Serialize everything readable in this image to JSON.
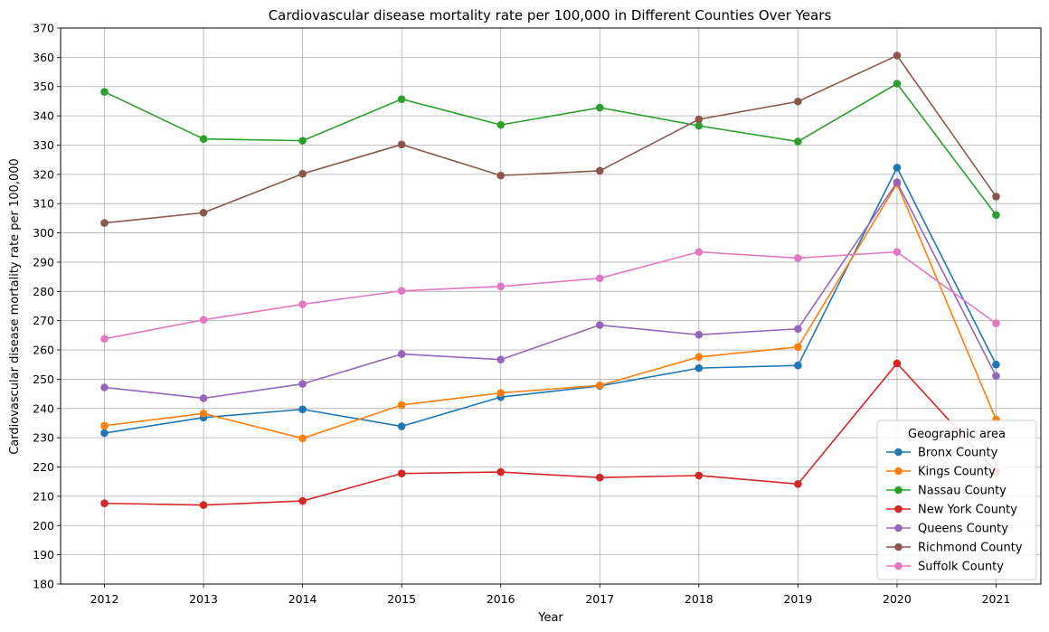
{
  "chart_data": {
    "type": "line",
    "title": "Cardiovascular disease mortality rate per 100,000 in Different Counties Over Years",
    "xlabel": "Year",
    "ylabel": "Cardiovascular disease mortality rate per 100,000",
    "x": [
      2012,
      2013,
      2014,
      2015,
      2016,
      2017,
      2018,
      2019,
      2020,
      2021
    ],
    "ylim": [
      180,
      370
    ],
    "yticks": [
      180,
      190,
      200,
      210,
      220,
      230,
      240,
      250,
      260,
      270,
      280,
      290,
      300,
      310,
      320,
      330,
      340,
      350,
      360,
      370
    ],
    "grid": true,
    "markers": true,
    "legend": {
      "title": "Geographic area",
      "placement": "lower-right"
    },
    "series": [
      {
        "name": "Bronx County",
        "color": "#1f77b4",
        "values": [
          231.6,
          236.9,
          239.7,
          233.9,
          243.9,
          247.7,
          253.8,
          254.7,
          322.3,
          255.0
        ]
      },
      {
        "name": "Kings County",
        "color": "#ff7f0e",
        "values": [
          234.1,
          238.3,
          229.8,
          241.2,
          245.3,
          247.9,
          257.6,
          261.0,
          316.8,
          236.2
        ]
      },
      {
        "name": "Nassau County",
        "color": "#2ca02c",
        "values": [
          348.2,
          332.1,
          331.5,
          345.7,
          336.9,
          342.8,
          336.6,
          331.2,
          351.0,
          306.1
        ]
      },
      {
        "name": "New York County",
        "color": "#d62728",
        "values": [
          207.6,
          207.0,
          208.4,
          217.8,
          218.3,
          216.4,
          217.1,
          214.2,
          255.4,
          218.4
        ]
      },
      {
        "name": "Queens County",
        "color": "#9467bd",
        "values": [
          247.2,
          243.5,
          248.4,
          258.6,
          256.7,
          268.5,
          265.2,
          267.2,
          317.3,
          251.1
        ]
      },
      {
        "name": "Richmond County",
        "color": "#8c564b",
        "values": [
          303.4,
          306.9,
          320.2,
          330.2,
          319.6,
          321.2,
          338.8,
          344.9,
          360.6,
          312.4
        ]
      },
      {
        "name": "Suffolk County",
        "color": "#e377c2",
        "values": [
          263.8,
          270.3,
          275.6,
          280.2,
          281.7,
          284.5,
          293.5,
          291.4,
          293.5,
          269.1
        ]
      }
    ]
  }
}
